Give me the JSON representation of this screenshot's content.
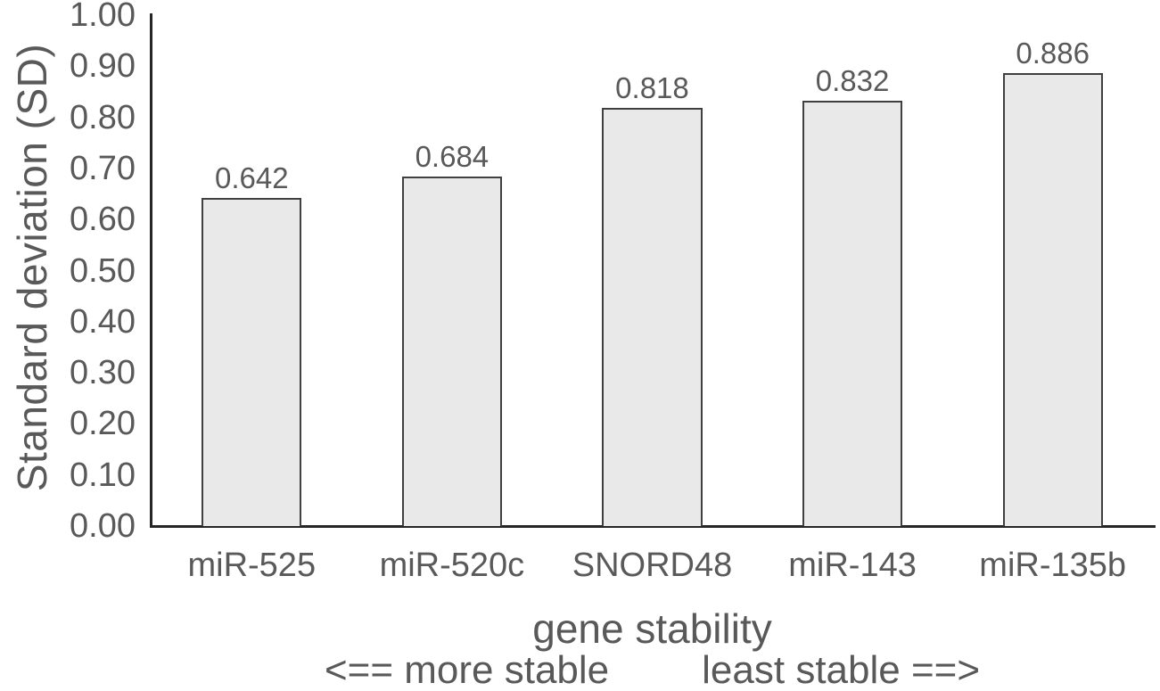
{
  "figure": {
    "background": "#ffffff"
  },
  "chart_data": {
    "type": "bar",
    "categories": [
      "miR-525",
      "miR-520c",
      "SNORD48",
      "miR-143",
      "miR-135b"
    ],
    "values": [
      0.642,
      0.684,
      0.818,
      0.832,
      0.886
    ],
    "data_labels": [
      "0.642",
      "0.684",
      "0.818",
      "0.832",
      "0.886"
    ],
    "ylabel": "Standard deviation (SD)",
    "xlabel": "gene stability",
    "xlabel_note_left": "<== more stable",
    "xlabel_note_right": "least stable ==>",
    "ylim": [
      0,
      1
    ],
    "yticks": [
      "0.00",
      "0.10",
      "0.20",
      "0.30",
      "0.40",
      "0.50",
      "0.60",
      "0.70",
      "0.80",
      "0.90",
      "1.00"
    ],
    "grid": false,
    "legend": false,
    "bar_fill": "#e9e9e9",
    "bar_border": "#404040",
    "axis_color": "#262626",
    "label_color": "#595959"
  }
}
